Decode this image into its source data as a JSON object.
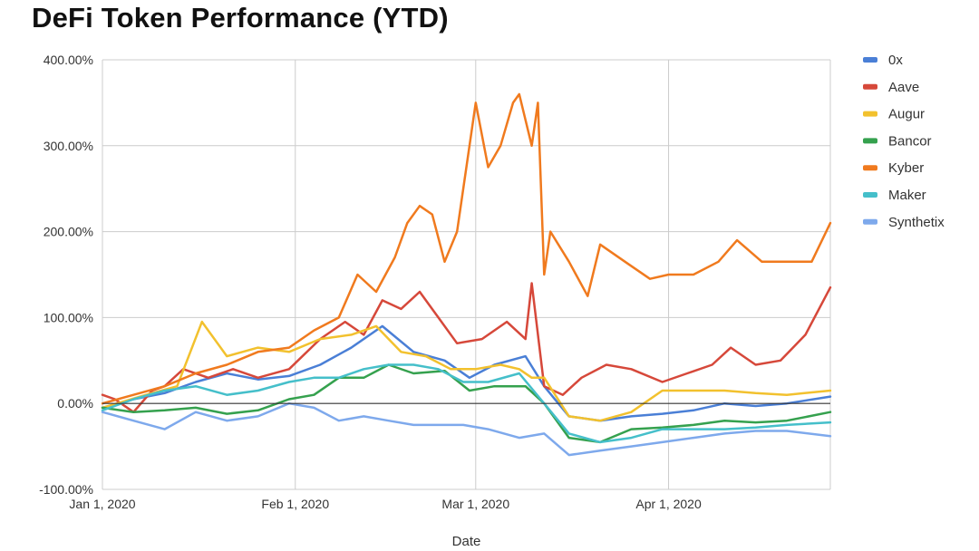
{
  "title": "DeFi Token Performance (YTD)",
  "chart_data": {
    "type": "line",
    "title": "DeFi Token Performance (YTD)",
    "xlabel": "Date",
    "ylabel": "",
    "ylim": [
      -100,
      400
    ],
    "x_range": [
      "2020-01-01",
      "2020-04-27"
    ],
    "y_ticks": [
      -100,
      0,
      100,
      200,
      300,
      400
    ],
    "y_tick_labels": [
      "-100.00%",
      "0.00%",
      "100.00%",
      "200.00%",
      "300.00%",
      "400.00%"
    ],
    "x_ticks": [
      "2020-01-01",
      "2020-02-01",
      "2020-03-01",
      "2020-04-01"
    ],
    "x_tick_labels": [
      "Jan 1, 2020",
      "Feb 1, 2020",
      "Mar 1, 2020",
      "Apr 1, 2020"
    ],
    "grid": true,
    "legend_position": "right",
    "series": [
      {
        "name": "0x",
        "color": "#4a7fd6",
        "x": [
          "2020-01-01",
          "2020-01-06",
          "2020-01-11",
          "2020-01-16",
          "2020-01-21",
          "2020-01-26",
          "2020-01-31",
          "2020-02-05",
          "2020-02-10",
          "2020-02-15",
          "2020-02-20",
          "2020-02-25",
          "2020-02-29",
          "2020-03-04",
          "2020-03-09",
          "2020-03-12",
          "2020-03-16",
          "2020-03-21",
          "2020-03-26",
          "2020-03-31",
          "2020-04-05",
          "2020-04-10",
          "2020-04-15",
          "2020-04-20",
          "2020-04-27"
        ],
        "values": [
          -5,
          5,
          12,
          25,
          35,
          28,
          32,
          45,
          65,
          90,
          60,
          50,
          30,
          45,
          55,
          20,
          -15,
          -20,
          -15,
          -12,
          -8,
          0,
          -3,
          0,
          8
        ]
      },
      {
        "name": "Aave",
        "color": "#d6483a",
        "x": [
          "2020-01-01",
          "2020-01-03",
          "2020-01-06",
          "2020-01-09",
          "2020-01-11",
          "2020-01-14",
          "2020-01-18",
          "2020-01-22",
          "2020-01-26",
          "2020-01-31",
          "2020-02-05",
          "2020-02-09",
          "2020-02-12",
          "2020-02-15",
          "2020-02-18",
          "2020-02-21",
          "2020-02-24",
          "2020-02-27",
          "2020-03-02",
          "2020-03-06",
          "2020-03-09",
          "2020-03-10",
          "2020-03-12",
          "2020-03-15",
          "2020-03-18",
          "2020-03-22",
          "2020-03-26",
          "2020-03-31",
          "2020-04-04",
          "2020-04-08",
          "2020-04-11",
          "2020-04-15",
          "2020-04-19",
          "2020-04-23",
          "2020-04-27"
        ],
        "values": [
          10,
          5,
          -10,
          15,
          20,
          40,
          30,
          40,
          30,
          40,
          75,
          95,
          80,
          120,
          110,
          130,
          100,
          70,
          75,
          95,
          75,
          140,
          20,
          10,
          30,
          45,
          40,
          25,
          35,
          45,
          65,
          45,
          50,
          80,
          135
        ]
      },
      {
        "name": "Augur",
        "color": "#f2c12e",
        "x": [
          "2020-01-01",
          "2020-01-08",
          "2020-01-13",
          "2020-01-17",
          "2020-01-21",
          "2020-01-26",
          "2020-01-31",
          "2020-02-05",
          "2020-02-10",
          "2020-02-14",
          "2020-02-18",
          "2020-02-22",
          "2020-02-26",
          "2020-03-01",
          "2020-03-05",
          "2020-03-08",
          "2020-03-10",
          "2020-03-12",
          "2020-03-16",
          "2020-03-21",
          "2020-03-26",
          "2020-03-31",
          "2020-04-05",
          "2020-04-10",
          "2020-04-15",
          "2020-04-20",
          "2020-04-27"
        ],
        "values": [
          -5,
          10,
          20,
          95,
          55,
          65,
          60,
          75,
          80,
          90,
          60,
          55,
          40,
          40,
          45,
          40,
          30,
          30,
          -15,
          -20,
          -10,
          15,
          15,
          15,
          12,
          10,
          15
        ]
      },
      {
        "name": "Bancor",
        "color": "#35a14e",
        "x": [
          "2020-01-01",
          "2020-01-06",
          "2020-01-11",
          "2020-01-16",
          "2020-01-21",
          "2020-01-26",
          "2020-01-31",
          "2020-02-04",
          "2020-02-08",
          "2020-02-12",
          "2020-02-16",
          "2020-02-20",
          "2020-02-25",
          "2020-02-29",
          "2020-03-04",
          "2020-03-09",
          "2020-03-12",
          "2020-03-16",
          "2020-03-21",
          "2020-03-26",
          "2020-03-31",
          "2020-04-05",
          "2020-04-10",
          "2020-04-15",
          "2020-04-20",
          "2020-04-27"
        ],
        "values": [
          -5,
          -10,
          -8,
          -5,
          -12,
          -8,
          5,
          10,
          30,
          30,
          45,
          35,
          38,
          15,
          20,
          20,
          0,
          -40,
          -45,
          -30,
          -28,
          -25,
          -20,
          -22,
          -20,
          -10
        ]
      },
      {
        "name": "Kyber",
        "color": "#f07a1e",
        "x": [
          "2020-01-01",
          "2020-01-06",
          "2020-01-11",
          "2020-01-16",
          "2020-01-21",
          "2020-01-26",
          "2020-01-31",
          "2020-02-04",
          "2020-02-08",
          "2020-02-11",
          "2020-02-14",
          "2020-02-17",
          "2020-02-19",
          "2020-02-21",
          "2020-02-23",
          "2020-02-25",
          "2020-02-27",
          "2020-03-01",
          "2020-03-03",
          "2020-03-05",
          "2020-03-07",
          "2020-03-08",
          "2020-03-10",
          "2020-03-11",
          "2020-03-12",
          "2020-03-13",
          "2020-03-16",
          "2020-03-19",
          "2020-03-21",
          "2020-03-25",
          "2020-03-29",
          "2020-04-01",
          "2020-04-05",
          "2020-04-09",
          "2020-04-12",
          "2020-04-16",
          "2020-04-20",
          "2020-04-24",
          "2020-04-27"
        ],
        "values": [
          0,
          10,
          20,
          35,
          45,
          60,
          65,
          85,
          100,
          150,
          130,
          170,
          210,
          230,
          220,
          165,
          200,
          350,
          275,
          300,
          350,
          360,
          300,
          350,
          150,
          200,
          165,
          125,
          185,
          165,
          145,
          150,
          150,
          165,
          190,
          165,
          165,
          165,
          210
        ]
      },
      {
        "name": "Maker",
        "color": "#45bfca",
        "x": [
          "2020-01-01",
          "2020-01-06",
          "2020-01-11",
          "2020-01-16",
          "2020-01-21",
          "2020-01-26",
          "2020-01-31",
          "2020-02-04",
          "2020-02-08",
          "2020-02-12",
          "2020-02-16",
          "2020-02-20",
          "2020-02-24",
          "2020-02-28",
          "2020-03-03",
          "2020-03-08",
          "2020-03-12",
          "2020-03-16",
          "2020-03-21",
          "2020-03-26",
          "2020-03-31",
          "2020-04-05",
          "2020-04-10",
          "2020-04-15",
          "2020-04-20",
          "2020-04-27"
        ],
        "values": [
          -8,
          5,
          15,
          20,
          10,
          15,
          25,
          30,
          30,
          40,
          45,
          45,
          40,
          25,
          25,
          35,
          0,
          -35,
          -45,
          -40,
          -30,
          -30,
          -30,
          -28,
          -25,
          -22
        ]
      },
      {
        "name": "Synthetix",
        "color": "#7ea9ec",
        "x": [
          "2020-01-01",
          "2020-01-06",
          "2020-01-11",
          "2020-01-16",
          "2020-01-21",
          "2020-01-26",
          "2020-01-31",
          "2020-02-04",
          "2020-02-08",
          "2020-02-12",
          "2020-02-16",
          "2020-02-20",
          "2020-02-24",
          "2020-02-28",
          "2020-03-03",
          "2020-03-08",
          "2020-03-12",
          "2020-03-16",
          "2020-03-21",
          "2020-03-26",
          "2020-03-31",
          "2020-04-05",
          "2020-04-10",
          "2020-04-15",
          "2020-04-20",
          "2020-04-27"
        ],
        "values": [
          -10,
          -20,
          -30,
          -10,
          -20,
          -15,
          0,
          -5,
          -20,
          -15,
          -20,
          -25,
          -25,
          -25,
          -30,
          -40,
          -35,
          -60,
          -55,
          -50,
          -45,
          -40,
          -35,
          -32,
          -32,
          -38
        ]
      }
    ]
  }
}
